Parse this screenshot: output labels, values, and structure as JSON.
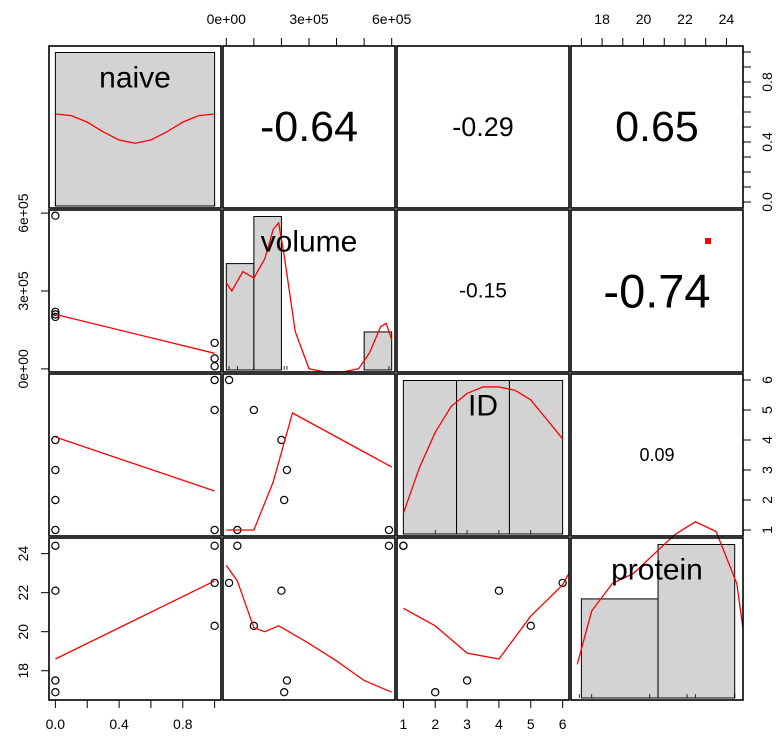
{
  "chart_data": {
    "type": "scatter",
    "kind": "correlation-matrix",
    "variables": [
      "naive",
      "volume",
      "ID",
      "protein"
    ],
    "observations": {
      "naive": [
        0,
        0,
        0,
        0,
        1,
        1,
        1
      ],
      "volume": [
        590000,
        210000,
        220000,
        200000,
        100000,
        10000,
        40000
      ],
      "ID": [
        1,
        2,
        3,
        4,
        5,
        6,
        1
      ],
      "protein": [
        24.4,
        16.9,
        17.5,
        22.1,
        20.3,
        22.5,
        24.4
      ]
    },
    "histograms": {
      "naive": {
        "edges": [
          0,
          1
        ],
        "counts": [
          1
        ]
      },
      "volume": {
        "edges": [
          0,
          100000,
          200000,
          300000,
          500000,
          600000
        ],
        "counts": [
          2.3,
          3.3,
          0,
          0,
          0.85
        ]
      },
      "ID": {
        "edges": [
          1,
          2.67,
          4.33,
          6
        ],
        "counts": [
          1,
          1,
          1
        ]
      },
      "protein": {
        "edges": [
          17,
          20.7,
          24.4
        ],
        "counts": [
          0.65,
          1
        ]
      }
    },
    "densities": {
      "naive": {
        "x": [
          0,
          0.1,
          0.2,
          0.3,
          0.4,
          0.5,
          0.6,
          0.7,
          0.8,
          0.9,
          1.0
        ],
        "y": [
          0.58,
          0.57,
          0.53,
          0.47,
          0.42,
          0.4,
          0.42,
          0.47,
          0.53,
          0.57,
          0.58
        ]
      },
      "volume": {
        "x": [
          0,
          20000,
          60000,
          100000,
          140000,
          170000,
          190000,
          210000,
          250000,
          300000,
          360000,
          420000,
          480000,
          520000,
          560000,
          580000,
          600000
        ],
        "y": [
          0.55,
          0.5,
          0.62,
          0.58,
          0.7,
          0.88,
          0.92,
          0.72,
          0.25,
          0.02,
          0,
          0,
          0.02,
          0.12,
          0.28,
          0.3,
          0.2
        ]
      },
      "ID": {
        "x": [
          1,
          1.5,
          2,
          2.5,
          3,
          3.5,
          4,
          4.5,
          5,
          5.5,
          6
        ],
        "y": [
          0.14,
          0.42,
          0.64,
          0.8,
          0.88,
          0.92,
          0.92,
          0.9,
          0.84,
          0.72,
          0.6
        ]
      },
      "protein": {
        "x": [
          16.8,
          17.5,
          18.5,
          19.5,
          20.5,
          21.5,
          22.5,
          23.5,
          24.5,
          25.2
        ],
        "y": [
          0.22,
          0.55,
          0.72,
          0.78,
          0.9,
          1.02,
          1.1,
          1.04,
          0.72,
          0.44
        ]
      }
    },
    "correlations": [
      {
        "row": 0,
        "col": 1,
        "label": "-0.64",
        "abs": 0.64
      },
      {
        "row": 0,
        "col": 2,
        "label": "-0.29",
        "abs": 0.29
      },
      {
        "row": 0,
        "col": 3,
        "label": "0.65",
        "abs": 0.65
      },
      {
        "row": 1,
        "col": 2,
        "label": "-0.15",
        "abs": 0.15
      },
      {
        "row": 1,
        "col": 3,
        "label": "-0.74",
        "abs": 0.74
      },
      {
        "row": 2,
        "col": 3,
        "label": "0.09",
        "abs": 0.09
      }
    ],
    "significance_marks": [
      {
        "row": 1,
        "col": 3,
        "stars": 1
      }
    ],
    "smoothers": [
      {
        "row": 1,
        "col": 0,
        "x": [
          0,
          1
        ],
        "y": [
          210000,
          60000
        ]
      },
      {
        "row": 2,
        "col": 0,
        "x": [
          0,
          1
        ],
        "y": [
          4.1,
          2.3
        ]
      },
      {
        "row": 3,
        "col": 0,
        "x": [
          0,
          1
        ],
        "y": [
          18.6,
          22.6
        ]
      },
      {
        "row": 2,
        "col": 1,
        "x": [
          0,
          10000,
          100000,
          170000,
          240000,
          300000,
          400000,
          500000,
          600000
        ],
        "y": [
          1,
          1,
          1,
          2.6,
          4.9,
          4.6,
          4.1,
          3.6,
          3.1
        ]
      },
      {
        "row": 3,
        "col": 1,
        "x": [
          0,
          40000,
          100000,
          140000,
          190000,
          300000,
          400000,
          500000,
          600000
        ],
        "y": [
          23.4,
          22.6,
          20.2,
          20.0,
          20.3,
          19.4,
          18.5,
          17.5,
          16.9
        ]
      },
      {
        "row": 3,
        "col": 2,
        "x": [
          1,
          2,
          3,
          4,
          5,
          6,
          6.2
        ],
        "y": [
          21.2,
          20.3,
          18.9,
          18.6,
          20.8,
          22.4,
          23.0
        ]
      }
    ],
    "axes": {
      "naive": {
        "lim": [
          -0.04,
          1.04
        ],
        "ticks": [
          0.0,
          0.2,
          0.4,
          0.6,
          0.8,
          1.0
        ],
        "labels": [
          "0.0",
          "",
          "0.4",
          "",
          "0.8",
          ""
        ]
      },
      "volume": {
        "lim": [
          -12000,
          612000
        ],
        "ticks": [
          0,
          100000,
          200000,
          300000,
          400000,
          500000,
          600000
        ],
        "labels": [
          "0e+00",
          "",
          "",
          "3e+05",
          "",
          "",
          "6e+05"
        ]
      },
      "ID": {
        "lim": [
          0.8,
          6.2
        ],
        "ticks": [
          1,
          2,
          3,
          4,
          5,
          6
        ],
        "labels": [
          "1",
          "2",
          "3",
          "4",
          "5",
          "6"
        ]
      },
      "protein": {
        "lim": [
          16.5,
          24.8
        ],
        "ticks": [
          17,
          18,
          19,
          20,
          21,
          22,
          23,
          24
        ],
        "labels": [
          "",
          "18",
          "",
          "20",
          "",
          "22",
          "",
          "24"
        ]
      }
    },
    "left_axis_labels": {
      "volume": {
        "ticks": [
          0,
          300000,
          600000
        ],
        "labels": [
          "0e+00",
          "3e+05",
          "6e+05"
        ]
      },
      "protein": {
        "ticks": [
          18,
          20,
          22,
          24
        ],
        "labels": [
          "18",
          "20",
          "22",
          "24"
        ]
      }
    },
    "right_axis_labels": {
      "naive": {
        "ticks": [
          0.0,
          0.1,
          0.2,
          0.3,
          0.4,
          0.5,
          0.6,
          0.7,
          0.8,
          0.9,
          1.0
        ],
        "labels": [
          "0.0",
          "",
          "",
          "",
          "0.4",
          "",
          "",
          "",
          "0.8",
          "",
          ""
        ]
      },
      "ID": {
        "ticks": [
          1,
          2,
          3,
          4,
          5,
          6
        ],
        "labels": [
          "1",
          "2",
          "3",
          "4",
          "5",
          "6"
        ]
      }
    },
    "colors": {
      "points": "#000000",
      "smooth": "#ff0000",
      "hist_fill": "#d3d3d3",
      "frame": "#000000",
      "mark": "#ff0000"
    }
  }
}
